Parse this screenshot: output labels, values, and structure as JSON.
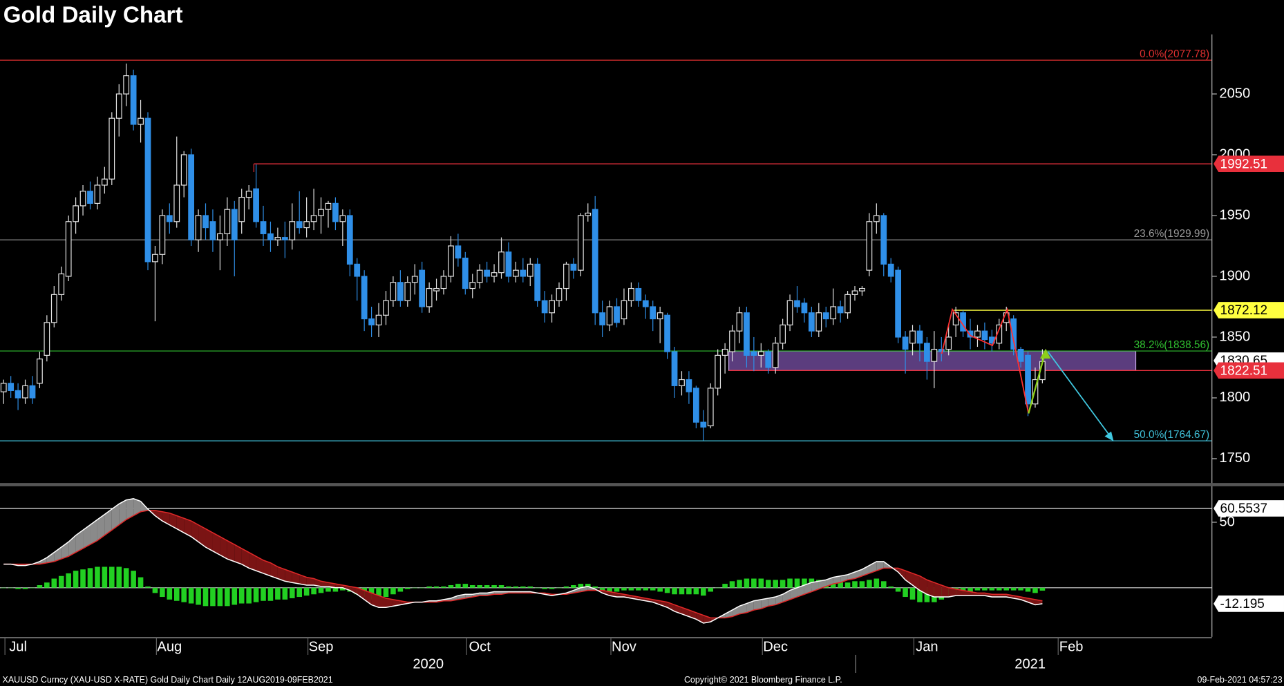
{
  "chart_data": {
    "type": "candlestick",
    "title": "Gold Daily Chart",
    "footer": [
      "XAUUSD Curncy (XAU-USD X-RATE) Gold Daily Chart  Daily 12AUG2019-09FEB2021",
      "Copyright© 2021 Bloomberg Finance L.P.",
      "09-Feb-2021 04:57:23"
    ],
    "year_labels": [
      "2020",
      "2021"
    ],
    "up_color": "#e6e6e6",
    "down_color": "#2f8fe8",
    "ylim": [
      1730,
      2099
    ],
    "yticks": [
      1750,
      1800,
      1850,
      1900,
      1950,
      2000,
      2050
    ],
    "xlim": [
      -0.5,
      167.5
    ],
    "xticks": [
      {
        "value": 2,
        "label": "Jul"
      },
      {
        "value": 23,
        "label": "Aug"
      },
      {
        "value": 44,
        "label": "Sep"
      },
      {
        "value": 66,
        "label": "Oct"
      },
      {
        "value": 86,
        "label": "Nov"
      },
      {
        "value": 107,
        "label": "Dec"
      },
      {
        "value": 128,
        "label": "Jan"
      },
      {
        "value": 148,
        "label": "Feb"
      }
    ],
    "levels": [
      {
        "label": "0.0%(2077.78)",
        "value": 2077.78,
        "color": "#e03030"
      },
      {
        "label": "23.6%(1929.99)",
        "value": 1929.99,
        "color": "#9a9a9a"
      },
      {
        "label": "38.2%(1838.56)",
        "value": 1838.56,
        "color": "#30c030"
      },
      {
        "label": "50.0%(1764.67)",
        "value": 1764.67,
        "color": "#40c0d8"
      }
    ],
    "tags": [
      {
        "value": 1992.51,
        "color": "#e8303c",
        "text_color": "#ffffff"
      },
      {
        "value": 1872.12,
        "color": "#ffff40",
        "text_color": "#000000"
      },
      {
        "value": 1830.65,
        "color": "#ffffff",
        "text_color": "#000000"
      },
      {
        "value": 1822.51,
        "color": "#e8303c",
        "text_color": "#ffffff"
      }
    ],
    "zone": [
      1822.51,
      1838.56
    ],
    "zone_color": "#7a52a8",
    "ohlc": [
      [
        1805,
        1815,
        1795,
        1812
      ],
      [
        1812,
        1818,
        1800,
        1806
      ],
      [
        1806,
        1812,
        1790,
        1800
      ],
      [
        1800,
        1815,
        1795,
        1810
      ],
      [
        1810,
        1818,
        1795,
        1800
      ],
      [
        1812,
        1838,
        1808,
        1832
      ],
      [
        1835,
        1868,
        1830,
        1862
      ],
      [
        1862,
        1892,
        1858,
        1885
      ],
      [
        1885,
        1908,
        1880,
        1902
      ],
      [
        1900,
        1950,
        1896,
        1945
      ],
      [
        1945,
        1965,
        1935,
        1958
      ],
      [
        1958,
        1975,
        1950,
        1970
      ],
      [
        1970,
        1978,
        1955,
        1960
      ],
      [
        1960,
        1982,
        1955,
        1975
      ],
      [
        1975,
        1990,
        1968,
        1980
      ],
      [
        1980,
        2035,
        1975,
        2030
      ],
      [
        2030,
        2058,
        2015,
        2050
      ],
      [
        2050,
        2075,
        2040,
        2065
      ],
      [
        2065,
        2070,
        2020,
        2025
      ],
      [
        2025,
        2045,
        2010,
        2030
      ],
      [
        2030,
        2035,
        1905,
        1912
      ],
      [
        1912,
        1925,
        1863,
        1918
      ],
      [
        1918,
        1955,
        1910,
        1950
      ],
      [
        1950,
        1960,
        1935,
        1945
      ],
      [
        1945,
        2015,
        1940,
        1975
      ],
      [
        1975,
        2003,
        1965,
        2000
      ],
      [
        2000,
        2005,
        1925,
        1930
      ],
      [
        1930,
        1955,
        1920,
        1950
      ],
      [
        1950,
        1960,
        1930,
        1940
      ],
      [
        1945,
        1955,
        1920,
        1930
      ],
      [
        1930,
        1950,
        1905,
        1935
      ],
      [
        1935,
        1965,
        1925,
        1955
      ],
      [
        1955,
        1962,
        1900,
        1930
      ],
      [
        1945,
        1972,
        1935,
        1965
      ],
      [
        1965,
        1975,
        1955,
        1970
      ],
      [
        1972,
        1992,
        1940,
        1945
      ],
      [
        1945,
        1958,
        1925,
        1935
      ],
      [
        1935,
        1945,
        1920,
        1930
      ],
      [
        1930,
        1940,
        1925,
        1932
      ],
      [
        1932,
        1945,
        1915,
        1930
      ],
      [
        1930,
        1960,
        1922,
        1945
      ],
      [
        1945,
        1970,
        1935,
        1940
      ],
      [
        1940,
        1965,
        1932,
        1945
      ],
      [
        1945,
        1972,
        1938,
        1950
      ],
      [
        1950,
        1965,
        1935,
        1955
      ],
      [
        1955,
        1962,
        1940,
        1960
      ],
      [
        1960,
        1965,
        1938,
        1945
      ],
      [
        1945,
        1955,
        1925,
        1950
      ],
      [
        1950,
        1955,
        1900,
        1910
      ],
      [
        1910,
        1915,
        1880,
        1900
      ],
      [
        1900,
        1905,
        1855,
        1865
      ],
      [
        1865,
        1875,
        1850,
        1860
      ],
      [
        1860,
        1878,
        1850,
        1868
      ],
      [
        1868,
        1888,
        1860,
        1880
      ],
      [
        1880,
        1900,
        1875,
        1895
      ],
      [
        1895,
        1905,
        1875,
        1880
      ],
      [
        1880,
        1900,
        1875,
        1895
      ],
      [
        1895,
        1910,
        1885,
        1900
      ],
      [
        1905,
        1912,
        1870,
        1875
      ],
      [
        1875,
        1895,
        1870,
        1890
      ],
      [
        1888,
        1898,
        1880,
        1890
      ],
      [
        1890,
        1905,
        1885,
        1900
      ],
      [
        1900,
        1933,
        1895,
        1925
      ],
      [
        1925,
        1935,
        1908,
        1915
      ],
      [
        1915,
        1920,
        1885,
        1890
      ],
      [
        1890,
        1902,
        1882,
        1895
      ],
      [
        1895,
        1910,
        1890,
        1905
      ],
      [
        1905,
        1912,
        1895,
        1900
      ],
      [
        1900,
        1910,
        1895,
        1903
      ],
      [
        1903,
        1932,
        1898,
        1920
      ],
      [
        1920,
        1928,
        1895,
        1900
      ],
      [
        1900,
        1912,
        1895,
        1905
      ],
      [
        1905,
        1915,
        1895,
        1900
      ],
      [
        1900,
        1915,
        1892,
        1910
      ],
      [
        1910,
        1915,
        1875,
        1880
      ],
      [
        1880,
        1888,
        1862,
        1870
      ],
      [
        1870,
        1885,
        1862,
        1880
      ],
      [
        1880,
        1895,
        1875,
        1890
      ],
      [
        1890,
        1912,
        1880,
        1910
      ],
      [
        1910,
        1915,
        1898,
        1905
      ],
      [
        1905,
        1952,
        1900,
        1950
      ],
      [
        1950,
        1960,
        1945,
        1952
      ],
      [
        1955,
        1966,
        1860,
        1870
      ],
      [
        1870,
        1880,
        1850,
        1860
      ],
      [
        1860,
        1880,
        1855,
        1875
      ],
      [
        1875,
        1882,
        1858,
        1862
      ],
      [
        1865,
        1890,
        1860,
        1880
      ],
      [
        1880,
        1895,
        1875,
        1890
      ],
      [
        1890,
        1895,
        1875,
        1880
      ],
      [
        1880,
        1885,
        1865,
        1875
      ],
      [
        1875,
        1880,
        1855,
        1865
      ],
      [
        1865,
        1875,
        1845,
        1870
      ],
      [
        1868,
        1870,
        1832,
        1838
      ],
      [
        1838,
        1842,
        1800,
        1810
      ],
      [
        1810,
        1822,
        1802,
        1815
      ],
      [
        1815,
        1822,
        1795,
        1805
      ],
      [
        1808,
        1810,
        1775,
        1780
      ],
      [
        1780,
        1790,
        1765,
        1776
      ],
      [
        1777,
        1812,
        1775,
        1808
      ],
      [
        1808,
        1840,
        1802,
        1835
      ],
      [
        1835,
        1845,
        1820,
        1840
      ],
      [
        1838,
        1860,
        1830,
        1855
      ],
      [
        1855,
        1875,
        1845,
        1870
      ],
      [
        1870,
        1875,
        1825,
        1835
      ],
      [
        1838,
        1850,
        1822,
        1835
      ],
      [
        1835,
        1845,
        1825,
        1838
      ],
      [
        1838,
        1840,
        1820,
        1825
      ],
      [
        1825,
        1850,
        1820,
        1845
      ],
      [
        1845,
        1865,
        1840,
        1860
      ],
      [
        1860,
        1885,
        1855,
        1880
      ],
      [
        1880,
        1892,
        1870,
        1875
      ],
      [
        1878,
        1882,
        1862,
        1870
      ],
      [
        1870,
        1875,
        1850,
        1855
      ],
      [
        1855,
        1878,
        1850,
        1870
      ],
      [
        1870,
        1875,
        1858,
        1865
      ],
      [
        1865,
        1890,
        1860,
        1875
      ],
      [
        1875,
        1880,
        1862,
        1870
      ],
      [
        1870,
        1888,
        1865,
        1885
      ],
      [
        1885,
        1892,
        1880,
        1888
      ],
      [
        1888,
        1892,
        1884,
        1890
      ],
      [
        1905,
        1952,
        1900,
        1945
      ],
      [
        1945,
        1960,
        1935,
        1950
      ],
      [
        1950,
        1952,
        1900,
        1910
      ],
      [
        1910,
        1915,
        1895,
        1900
      ],
      [
        1905,
        1908,
        1845,
        1850
      ],
      [
        1850,
        1855,
        1820,
        1840
      ],
      [
        1845,
        1860,
        1835,
        1855
      ],
      [
        1855,
        1860,
        1830,
        1845
      ],
      [
        1845,
        1850,
        1815,
        1830
      ],
      [
        1830,
        1855,
        1808,
        1840
      ],
      [
        1840,
        1850,
        1830,
        1838
      ],
      [
        1840,
        1860,
        1835,
        1850
      ],
      [
        1860,
        1875,
        1850,
        1870
      ],
      [
        1870,
        1872,
        1850,
        1855
      ],
      [
        1855,
        1865,
        1840,
        1850
      ],
      [
        1850,
        1860,
        1842,
        1855
      ],
      [
        1855,
        1862,
        1840,
        1848
      ],
      [
        1850,
        1856,
        1838,
        1845
      ],
      [
        1845,
        1865,
        1840,
        1860
      ],
      [
        1862,
        1875,
        1855,
        1870
      ],
      [
        1865,
        1868,
        1835,
        1840
      ],
      [
        1840,
        1842,
        1825,
        1830
      ],
      [
        1835,
        1838,
        1785,
        1795
      ],
      [
        1795,
        1825,
        1792,
        1815
      ],
      [
        1815,
        1840,
        1812,
        1830
      ]
    ],
    "panel2": {
      "ylim": [
        -37.5,
        75.6
      ],
      "yticks": [
        50
      ],
      "level": 60.5537,
      "last": -12.195,
      "fast": {
        "color": "#ffffff",
        "values": [
          18,
          18,
          17,
          17,
          18,
          20,
          23,
          27,
          31,
          35,
          40,
          44,
          48,
          52,
          56,
          60,
          64,
          67,
          68,
          66,
          60,
          55,
          51,
          48,
          45,
          42,
          39,
          35,
          31,
          28,
          25,
          22,
          20,
          18,
          15,
          13,
          11,
          9,
          7,
          5,
          4,
          3,
          2,
          2,
          1,
          1,
          0,
          0,
          -2,
          -5,
          -9,
          -13,
          -15,
          -15,
          -14,
          -13,
          -12,
          -11,
          -11,
          -10,
          -10,
          -9,
          -8,
          -6,
          -5,
          -5,
          -4,
          -4,
          -3,
          -3,
          -3,
          -3,
          -3,
          -3,
          -4,
          -5,
          -6,
          -5,
          -4,
          -2,
          0,
          1,
          -1,
          -4,
          -6,
          -7,
          -7,
          -8,
          -9,
          -10,
          -11,
          -13,
          -15,
          -18,
          -20,
          -22,
          -24,
          -27,
          -26,
          -23,
          -20,
          -17,
          -14,
          -12,
          -10,
          -9,
          -8,
          -7,
          -5,
          -2,
          0,
          2,
          4,
          5,
          6,
          8,
          9,
          10,
          12,
          14,
          17,
          20,
          20,
          16,
          12,
          6,
          2,
          -2,
          -5,
          -7,
          -7,
          -7,
          -6,
          -6,
          -6,
          -6,
          -6,
          -7,
          -7,
          -7,
          -8,
          -9,
          -11,
          -13,
          -12.195
        ]
      },
      "slow": {
        "color": "#e02828",
        "values": [
          18,
          18,
          18,
          18,
          18,
          18,
          19,
          20,
          22,
          24,
          27,
          30,
          33,
          36,
          40,
          44,
          48,
          52,
          55,
          58,
          59,
          59,
          58,
          57,
          55,
          53,
          51,
          48,
          45,
          42,
          39,
          36,
          33,
          30,
          27,
          24,
          21,
          19,
          16,
          14,
          12,
          10,
          8,
          7,
          5,
          4,
          3,
          2,
          1,
          0,
          -2,
          -4,
          -6,
          -8,
          -9,
          -10,
          -11,
          -11,
          -11,
          -11,
          -11,
          -10,
          -10,
          -9,
          -8,
          -7,
          -6,
          -6,
          -5,
          -5,
          -4,
          -4,
          -4,
          -4,
          -4,
          -4,
          -5,
          -5,
          -5,
          -4,
          -3,
          -2,
          -2,
          -2,
          -3,
          -4,
          -5,
          -6,
          -7,
          -8,
          -9,
          -10,
          -11,
          -13,
          -15,
          -17,
          -19,
          -21,
          -23,
          -23,
          -23,
          -22,
          -20,
          -19,
          -17,
          -16,
          -14,
          -13,
          -11,
          -9,
          -7,
          -5,
          -3,
          -1,
          1,
          3,
          4,
          6,
          7,
          9,
          11,
          13,
          15,
          15,
          15,
          13,
          11,
          9,
          6,
          4,
          2,
          0,
          -1,
          -2,
          -3,
          -4,
          -4,
          -5,
          -5,
          -5,
          -6,
          -7,
          -8,
          -9,
          -10
        ]
      },
      "hist": {
        "color": "#22d022",
        "values": [
          0,
          0,
          -1,
          -1,
          0,
          2,
          4,
          7,
          9,
          11,
          13,
          14,
          15,
          16,
          16,
          16,
          16,
          15,
          13,
          8,
          1,
          -4,
          -7,
          -9,
          -10,
          -11,
          -12,
          -13,
          -14,
          -14,
          -14,
          -14,
          -13,
          -12,
          -12,
          -11,
          -10,
          -10,
          -9,
          -9,
          -8,
          -7,
          -6,
          -5,
          -4,
          -3,
          -3,
          -2,
          -3,
          -5,
          -7,
          -9,
          -9,
          -7,
          -5,
          -3,
          -1,
          0,
          0,
          1,
          1,
          1,
          2,
          3,
          3,
          2,
          2,
          2,
          2,
          2,
          1,
          1,
          1,
          1,
          0,
          -1,
          -1,
          0,
          1,
          2,
          3,
          3,
          1,
          -2,
          -3,
          -3,
          -2,
          -2,
          -2,
          -2,
          -2,
          -3,
          -4,
          -5,
          -5,
          -5,
          -5,
          -6,
          -3,
          0,
          3,
          5,
          6,
          7,
          7,
          7,
          6,
          6,
          6,
          7,
          7,
          7,
          7,
          6,
          5,
          5,
          5,
          4,
          5,
          5,
          6,
          7,
          5,
          1,
          -3,
          -7,
          -9,
          -11,
          -11,
          -11,
          -9,
          -7,
          -5,
          -4,
          -3,
          -2,
          -2,
          -2,
          -2,
          -2,
          -2,
          -2,
          -3,
          -4,
          -2.195
        ]
      }
    }
  }
}
